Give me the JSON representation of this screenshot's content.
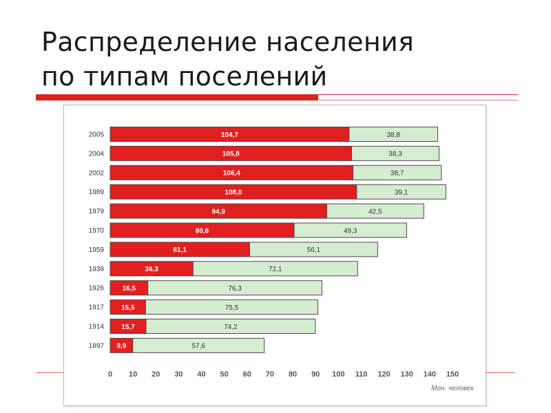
{
  "slide": {
    "title_line1": "Распределение населения",
    "title_line2": "по типам поселений"
  },
  "colors": {
    "urban": "#e21f1f",
    "rural": "#d6ecd2",
    "accent": "#d7261b"
  },
  "chart_data": {
    "type": "bar",
    "orientation": "horizontal",
    "stacked": true,
    "title": "",
    "xlabel": "Млн. человек",
    "ylabel": "",
    "xlim": [
      0,
      150
    ],
    "xticks": [
      0,
      10,
      20,
      30,
      40,
      50,
      60,
      70,
      80,
      90,
      100,
      110,
      120,
      130,
      140,
      150
    ],
    "grid": false,
    "categories": [
      "2005",
      "2004",
      "2002",
      "1989",
      "1979",
      "1970",
      "1959",
      "1939",
      "1926",
      "1917",
      "1914",
      "1897"
    ],
    "series": [
      {
        "values": [
          104.7,
          105.8,
          106.4,
          108.0,
          94.9,
          80.6,
          61.1,
          36.3,
          16.5,
          15.5,
          15.7,
          9.9
        ],
        "labels": [
          "104,7",
          "105,8",
          "106,4",
          "108,0",
          "94,9",
          "80,6",
          "61,1",
          "36,3",
          "16,5",
          "15,5",
          "15,7",
          "9,9"
        ],
        "color": "#e21f1f"
      },
      {
        "values": [
          38.8,
          38.3,
          38.7,
          39.1,
          42.5,
          49.3,
          56.1,
          72.1,
          76.3,
          75.5,
          74.2,
          57.6
        ],
        "labels": [
          "38,8",
          "38,3",
          "38,7",
          "39,1",
          "42,5",
          "49,3",
          "56,1",
          "72,1",
          "76,3",
          "75,5",
          "74,2",
          "57,6"
        ],
        "color": "#d6ecd2"
      }
    ]
  }
}
